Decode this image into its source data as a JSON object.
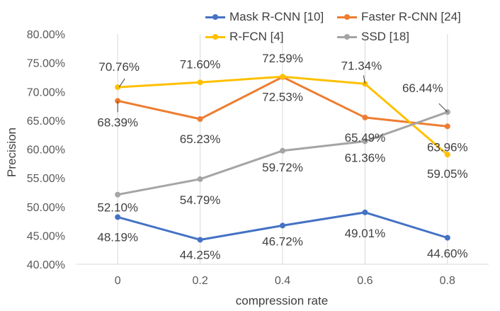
{
  "chart_data": {
    "type": "line",
    "xlabel": "compression rate",
    "ylabel": "Precision",
    "categories": [
      "0",
      "0.2",
      "0.4",
      "0.6",
      "0.8"
    ],
    "yticks": [
      "40.00%",
      "45.00%",
      "50.00%",
      "55.00%",
      "60.00%",
      "65.00%",
      "70.00%",
      "75.00%",
      "80.00%"
    ],
    "ylim": [
      40,
      80
    ],
    "grid": "vertical",
    "legend_position": "top-right",
    "series": [
      {
        "name": "Mask R-CNN [10]",
        "color": "#4472C4",
        "values": [
          48.19,
          44.25,
          46.72,
          49.01,
          44.6
        ],
        "labels": [
          "48.19%",
          "44.25%",
          "46.72%",
          "49.01%",
          "44.60%"
        ]
      },
      {
        "name": "Faster R-CNN [24]",
        "color": "#ED7D31",
        "values": [
          68.39,
          65.23,
          72.53,
          65.49,
          63.96
        ],
        "labels": [
          "68.39%",
          "65.23%",
          "72.53%",
          "65.49%",
          "63.96%"
        ]
      },
      {
        "name": "R-FCN [4]",
        "color": "#FFC000",
        "values": [
          70.76,
          71.6,
          72.59,
          71.34,
          59.05
        ],
        "labels": [
          "70.76%",
          "71.60%",
          "72.59%",
          "71.34%",
          "59.05%"
        ]
      },
      {
        "name": "SSD [18]",
        "color": "#A5A5A5",
        "values": [
          52.1,
          54.79,
          59.72,
          61.36,
          66.44
        ],
        "labels": [
          "52.10%",
          "54.79%",
          "59.72%",
          "61.36%",
          "66.44%"
        ]
      }
    ]
  }
}
